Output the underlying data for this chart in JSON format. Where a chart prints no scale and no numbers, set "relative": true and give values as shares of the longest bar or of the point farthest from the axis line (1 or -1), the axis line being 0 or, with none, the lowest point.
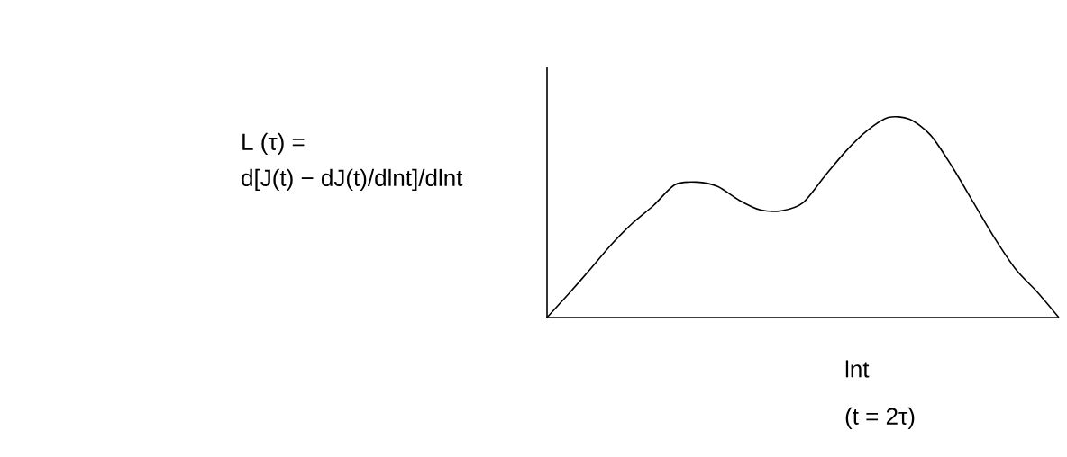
{
  "chart_data": {
    "type": "line",
    "relative": true,
    "xlabel": "lnt",
    "annotations": [
      "L (τ) =",
      "d[J(t) − dJ(t)/dlnt]/dlnt",
      "(t = 2τ)"
    ],
    "categories": [
      null,
      null,
      null,
      null,
      null,
      null,
      null,
      null,
      null,
      null,
      null,
      null,
      null,
      null,
      null,
      null,
      null,
      null,
      null,
      null,
      null,
      null,
      null,
      null,
      null
    ],
    "series": [
      {
        "color": "#000000",
        "values": [
          0,
          0.117,
          0.238,
          0.363,
          0.471,
          0.561,
          0.664,
          0.677,
          0.655,
          0.587,
          0.538,
          0.534,
          0.574,
          0.704,
          0.83,
          0.933,
          1.0,
          0.991,
          0.91,
          0.753,
          0.574,
          0.395,
          0.238,
          0.126,
          0
        ]
      }
    ]
  }
}
